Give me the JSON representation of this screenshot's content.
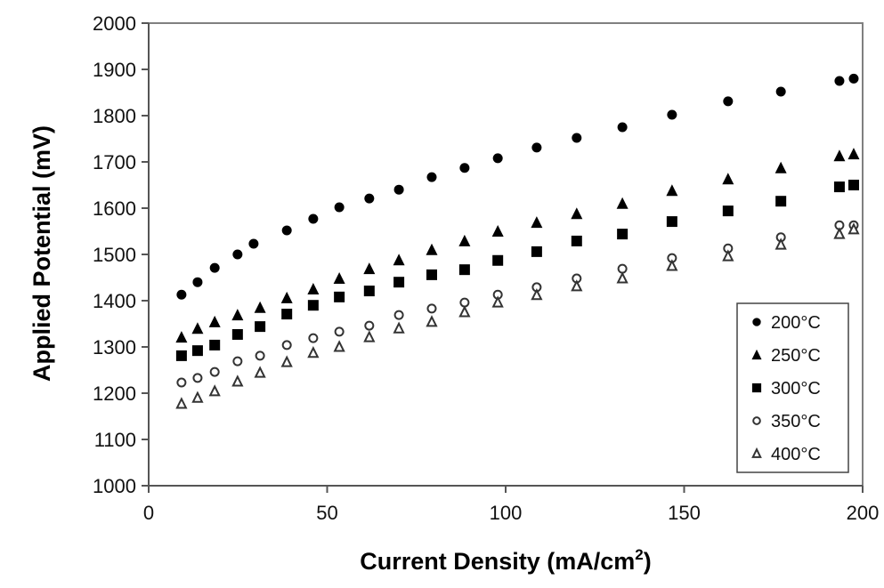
{
  "chart_data": {
    "type": "scatter",
    "title": "",
    "xlabel": "Current Density (mA/cm²)",
    "xlabel_base": "Current Density (mA/cm",
    "xlabel_sup": "2",
    "xlabel_end": ")",
    "ylabel": "Applied Potential (mV)",
    "xlim": [
      0,
      200
    ],
    "ylim": [
      1000,
      2000
    ],
    "xticks": [
      0,
      50,
      100,
      150,
      200
    ],
    "yticks": [
      1000,
      1100,
      1200,
      1300,
      1400,
      1500,
      1600,
      1700,
      1800,
      1900,
      2000
    ],
    "grid": false,
    "legend_position": "lower right (inside)",
    "series": [
      {
        "name": "200°C",
        "marker": "filled-circle",
        "x": [
          9.2,
          13.7,
          18.5,
          24.9,
          29.4,
          38.7,
          46.1,
          53.4,
          61.8,
          70.1,
          79.3,
          88.5,
          97.8,
          108.7,
          119.9,
          132.7,
          146.6,
          162.3,
          177.1,
          193.5,
          197.5
        ],
        "y": [
          1413,
          1440,
          1471,
          1500,
          1523,
          1552,
          1577,
          1602,
          1621,
          1640,
          1667,
          1687,
          1708,
          1731,
          1752,
          1775,
          1802,
          1831,
          1852,
          1875,
          1880
        ]
      },
      {
        "name": "250°C",
        "marker": "filled-triangle",
        "x": [
          9.2,
          13.7,
          18.5,
          24.9,
          31.2,
          38.7,
          46.1,
          53.4,
          61.8,
          70.1,
          79.3,
          88.5,
          97.8,
          108.7,
          119.9,
          132.7,
          146.6,
          162.3,
          177.1,
          193.5,
          197.5
        ],
        "y": [
          1321,
          1340,
          1354,
          1369,
          1385,
          1406,
          1425,
          1448,
          1469,
          1488,
          1510,
          1529,
          1550,
          1569,
          1588,
          1610,
          1638,
          1663,
          1687,
          1713,
          1717
        ]
      },
      {
        "name": "300°C",
        "marker": "filled-square",
        "x": [
          9.2,
          13.7,
          18.5,
          24.9,
          31.2,
          38.7,
          46.1,
          53.4,
          61.8,
          70.1,
          79.3,
          88.5,
          97.8,
          108.7,
          119.9,
          132.7,
          146.6,
          162.3,
          177.1,
          193.5,
          197.5
        ],
        "y": [
          1281,
          1292,
          1304,
          1327,
          1344,
          1371,
          1390,
          1408,
          1421,
          1440,
          1456,
          1467,
          1487,
          1506,
          1529,
          1544,
          1571,
          1594,
          1615,
          1646,
          1650
        ]
      },
      {
        "name": "350°C",
        "marker": "open-circle",
        "x": [
          9.2,
          13.7,
          18.5,
          24.9,
          31.2,
          38.7,
          46.1,
          53.4,
          61.8,
          70.1,
          79.3,
          88.5,
          97.8,
          108.7,
          119.9,
          132.7,
          146.6,
          162.3,
          177.1,
          193.5,
          197.5
        ],
        "y": [
          1223,
          1233,
          1246,
          1269,
          1281,
          1304,
          1319,
          1333,
          1346,
          1369,
          1383,
          1396,
          1413,
          1429,
          1448,
          1469,
          1492,
          1513,
          1537,
          1563,
          1563
        ]
      },
      {
        "name": "400°C",
        "marker": "open-triangle",
        "x": [
          9.2,
          13.7,
          18.5,
          24.9,
          31.2,
          38.7,
          46.1,
          53.4,
          61.8,
          70.1,
          79.3,
          88.5,
          97.8,
          108.7,
          119.9,
          132.7,
          146.6,
          162.3,
          177.1,
          193.5,
          197.5
        ],
        "y": [
          1177,
          1190,
          1204,
          1225,
          1244,
          1267,
          1287,
          1300,
          1321,
          1340,
          1354,
          1375,
          1396,
          1412,
          1431,
          1448,
          1475,
          1496,
          1521,
          1544,
          1554
        ]
      }
    ]
  },
  "colors": {
    "background": "#ffffff",
    "frame": "#808080",
    "marker_fill": "#000000",
    "open_marker_stroke": "#333333"
  }
}
